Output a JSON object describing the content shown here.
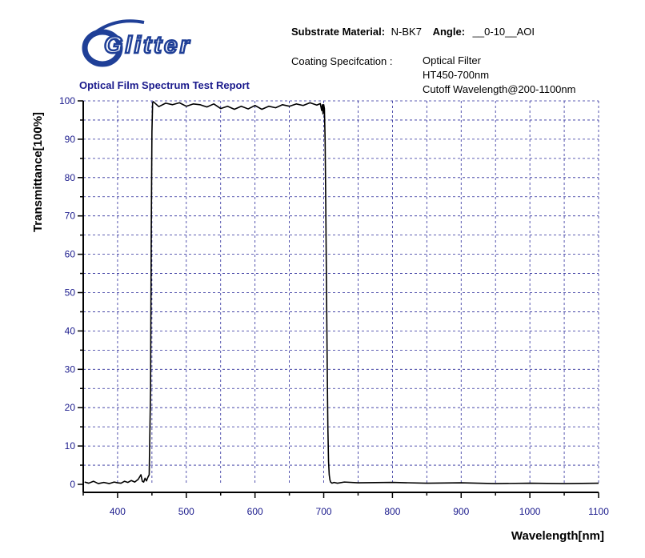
{
  "header": {
    "logo_text": "Glitter",
    "report_title": "Optical Film Spectrum Test Report",
    "substrate_label": "Substrate Material:",
    "substrate_value": "N-BK7",
    "angle_label": "Angle:",
    "angle_value": "__0-10__AOI",
    "coating_label": "Coating Specifcation :",
    "coating_lines": [
      "Optical Filter",
      "HT450-700nm",
      "Cutoff Wavelength@200-1100nm"
    ]
  },
  "colors": {
    "logo_blue": "#1f3f97",
    "title_blue": "#1a1a8c",
    "axis": "#000000",
    "grid": "#2a2a9a",
    "tick_labels": "#1a1a8c"
  },
  "chart_data": {
    "type": "line",
    "xlabel": "Wavelength[nm]",
    "ylabel": "Transmittance[100%]",
    "xlim": [
      350,
      1100
    ],
    "ylim": [
      0,
      100
    ],
    "xticks": [
      400,
      500,
      600,
      700,
      800,
      900,
      1000,
      1100
    ],
    "yticks": [
      0,
      10,
      20,
      30,
      40,
      50,
      60,
      70,
      80,
      90,
      100
    ],
    "grid": true,
    "series": [
      {
        "x": [
          352,
          358,
          365,
          372,
          380,
          388,
          395,
          400,
          405,
          410,
          415,
          420,
          425,
          430,
          434,
          436,
          438,
          440,
          442,
          444,
          446,
          448,
          449,
          450,
          451,
          452,
          455,
          460,
          470,
          480,
          490,
          500,
          510,
          520,
          530,
          540,
          550,
          560,
          570,
          580,
          590,
          600,
          610,
          620,
          630,
          640,
          650,
          660,
          670,
          680,
          690,
          695,
          697,
          698,
          699,
          700,
          701,
          702,
          703,
          704,
          705,
          706,
          707,
          708,
          709,
          710,
          712,
          715,
          720,
          730,
          750,
          800,
          850,
          900,
          950,
          1000,
          1050,
          1100
        ],
        "y": [
          0.6,
          0.3,
          0.8,
          0.2,
          0.5,
          0.2,
          0.6,
          0.4,
          0.3,
          0.8,
          0.5,
          1.0,
          0.6,
          1.3,
          2.5,
          0.8,
          0.6,
          1.6,
          0.9,
          1.8,
          2.5,
          25,
          65,
          92,
          99.5,
          99.8,
          99.3,
          98.5,
          99.4,
          99.0,
          99.5,
          98.6,
          99.2,
          99.0,
          98.4,
          99.2,
          98.0,
          98.6,
          97.8,
          98.6,
          97.9,
          98.8,
          97.8,
          98.6,
          98.2,
          99.0,
          98.6,
          99.2,
          98.8,
          99.5,
          98.9,
          99.3,
          97.5,
          99.0,
          96.6,
          99.0,
          98.0,
          90,
          72,
          52,
          32,
          15,
          6,
          2.5,
          1.2,
          0.6,
          0.3,
          0.5,
          0.3,
          0.6,
          0.4,
          0.5,
          0.3,
          0.4,
          0.2,
          0.3,
          0.2,
          0.3
        ]
      }
    ]
  }
}
